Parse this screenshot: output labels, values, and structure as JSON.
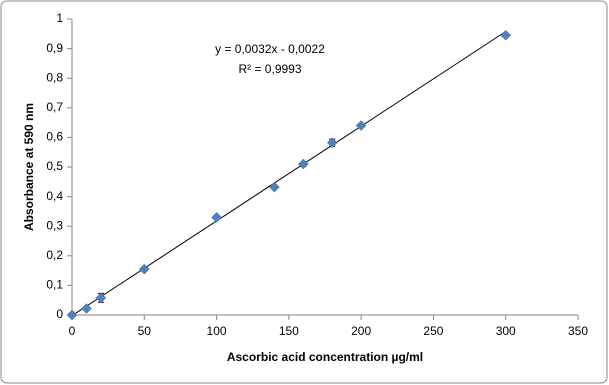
{
  "chart_data": {
    "type": "scatter",
    "x_label": "Ascorbic acid concentration µg/ml",
    "y_label": "Absorbance at 590 nm",
    "x": [
      0,
      10,
      20,
      50,
      100,
      140,
      160,
      180,
      200,
      300
    ],
    "series": [
      {
        "color": "#4f81bd",
        "values": [
          0,
          0.022,
          0.058,
          0.155,
          0.33,
          0.432,
          0.51,
          0.582,
          0.64,
          0.945
        ],
        "errors": [
          0.004,
          0.006,
          0.015,
          0.006,
          0.005,
          0.005,
          0.007,
          0.012,
          0.006,
          0.005
        ]
      }
    ],
    "trendline": {
      "slope": 0.0032,
      "intercept": -0.0022,
      "equation": "y = 0,0032x - 0,0022",
      "r2": "R² = 0,9993"
    },
    "xlim": [
      0,
      350
    ],
    "xticks": [
      0,
      50,
      100,
      150,
      200,
      250,
      300,
      350
    ],
    "ylim": [
      0,
      1
    ],
    "yticks": [
      0,
      {
        "value": 0.1,
        "label": "0,1"
      },
      {
        "value": 0.2,
        "label": "0,2"
      },
      {
        "value": 0.3,
        "label": "0,3"
      },
      {
        "value": 0.4,
        "label": "0,4"
      },
      {
        "value": 0.5,
        "label": "0,5"
      },
      {
        "value": 0.6,
        "label": "0,6"
      },
      {
        "value": 0.7,
        "label": "0,7"
      },
      {
        "value": 0.8,
        "label": "0,8"
      },
      {
        "value": 0.9,
        "label": "0,9"
      },
      1
    ],
    "grid": false
  }
}
